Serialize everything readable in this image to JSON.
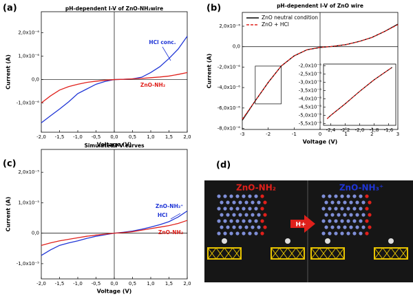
{
  "chart_data": [
    {
      "type": "line",
      "panel": "(a)",
      "title": "pH-dependent I-V of ZnO-NH₂wire",
      "x_label": "Voltage (V)",
      "y_label": "Current (A)",
      "x": [
        -2,
        -1.75,
        -1.5,
        -1.25,
        -1,
        -0.75,
        -0.5,
        -0.25,
        0,
        0.25,
        0.5,
        0.75,
        1,
        1.25,
        1.5,
        1.75,
        2
      ],
      "series": [
        {
          "name": "HCl conc.",
          "color": "#1f35d6",
          "values": [
            -1.85e-06,
            -1.55e-06,
            -1.26e-06,
            -9.5e-07,
            -6e-07,
            -4e-07,
            -2e-07,
            -8e-08,
            0,
            1e-08,
            3e-08,
            1e-07,
            3e-07,
            5.5e-07,
            9e-07,
            1.3e-06,
            1.85e-06
          ]
        },
        {
          "name": "ZnO-NH₂",
          "color": "#e0201b",
          "values": [
            -1e-06,
            -7e-07,
            -4.5e-07,
            -3e-07,
            -2e-07,
            -1.2e-07,
            -7e-08,
            -3e-08,
            0,
            1e-08,
            3e-08,
            5e-08,
            8e-08,
            1.1e-07,
            1.5e-07,
            2.2e-07,
            3e-07
          ]
        }
      ],
      "xlim": [
        -2,
        2
      ],
      "ylim": [
        -2.25e-06,
        2.9e-06
      ],
      "crosshair": true,
      "xticks": [
        {
          "value": -2,
          "label": "-2,0"
        },
        {
          "value": -1.5,
          "label": "-1,5"
        },
        {
          "value": -1,
          "label": "-1,0"
        },
        {
          "value": -0.5,
          "label": "-0,5"
        },
        {
          "value": 0,
          "label": "0,0"
        },
        {
          "value": 0.5,
          "label": "0,5"
        },
        {
          "value": 1,
          "label": "1,0"
        },
        {
          "value": 1.5,
          "label": "1,5"
        },
        {
          "value": 2,
          "label": "2,0"
        }
      ],
      "yticks": [
        {
          "value": -1e-06,
          "label": "-1,0x10⁻⁶"
        },
        {
          "value": 0,
          "label": "0,0"
        },
        {
          "value": 1e-06,
          "label": "1,0x10⁻⁶"
        },
        {
          "value": 2e-06,
          "label": "2,0x10⁻⁶"
        }
      ]
    },
    {
      "type": "line",
      "panel": "(b)",
      "title": "pH-dependent I-V of ZnO wire",
      "x_label": "Voltage (V)",
      "y_label": "Current (A)",
      "legend": "upper left",
      "x": [
        -3,
        -2.5,
        -2,
        -1.5,
        -1,
        -0.5,
        0,
        0.5,
        1,
        1.5,
        2,
        2.5,
        3
      ],
      "series": [
        {
          "name": "ZnO neutral condition",
          "color": "#000000",
          "values": [
            -7.2e-06,
            -5.3e-06,
            -3.5e-06,
            -1.9e-06,
            -9e-07,
            -3e-07,
            -8e-08,
            3e-08,
            2e-07,
            5e-07,
            9e-07,
            1.5e-06,
            2.2e-06
          ]
        },
        {
          "name": "ZnO + HCl",
          "color": "#e0201b",
          "dash": true,
          "values": [
            -7.1e-06,
            -5.3e-06,
            -3.5e-06,
            -1.9e-06,
            -9e-07,
            -3e-07,
            -7e-08,
            3e-08,
            2e-07,
            5e-07,
            9e-07,
            1.5e-06,
            2.15e-06
          ]
        }
      ],
      "xlim": [
        -3,
        3
      ],
      "ylim": [
        -8.1e-06,
        3.35e-06
      ],
      "crosshair": true,
      "xticks": [
        -3,
        -2,
        -1,
        0,
        1,
        2,
        3
      ],
      "yticks": [
        {
          "value": -8e-06,
          "label": "-8,0x10⁻⁶"
        },
        {
          "value": -6e-06,
          "label": "-6,0x10⁻⁶"
        },
        {
          "value": -4e-06,
          "label": "-4,0x10⁻⁶"
        },
        {
          "value": -2e-06,
          "label": "-2,0x10⁻⁶"
        },
        {
          "value": 0,
          "label": "0,0"
        },
        {
          "value": 2e-06,
          "label": "2,0x10⁻⁶"
        }
      ],
      "inset": {
        "type": "line",
        "x": [
          -2.45,
          -2.4,
          -2.2,
          -2.0,
          -1.8,
          -1.6,
          -1.55
        ],
        "series": [
          {
            "color": "#000000",
            "values": [
              -5.2e-06,
              -5e-06,
              -4.3e-06,
              -3.55e-06,
              -2.85e-06,
              -2.25e-06,
              -2.1e-06
            ]
          },
          {
            "color": "#e0201b",
            "dash": true,
            "values": [
              -5.2e-06,
              -5e-06,
              -4.3e-06,
              -3.55e-06,
              -2.85e-06,
              -2.25e-06,
              -2.1e-06
            ]
          }
        ],
        "xlim": [
          -2.5,
          -1.5
        ],
        "ylim": [
          -5.6e-06,
          -1.9e-06
        ],
        "xticks": [
          {
            "value": -2.4,
            "label": "-2,4"
          },
          {
            "value": -2.2,
            "label": "-2,2"
          },
          {
            "value": -2.0,
            "label": "-2,0"
          },
          {
            "value": -1.8,
            "label": "-1,8"
          },
          {
            "value": -1.6,
            "label": "-1,6"
          }
        ],
        "yticks": [
          {
            "value": -2e-06,
            "label": "-2,0x10⁻⁶"
          },
          {
            "value": -2.5e-06,
            "label": "-2,5x10⁻⁶"
          },
          {
            "value": -3e-06,
            "label": "-3,0x10⁻⁶"
          },
          {
            "value": -3.5e-06,
            "label": "-3,5x10⁻⁶"
          },
          {
            "value": -4e-06,
            "label": "-4,0x10⁻⁶"
          },
          {
            "value": -4.5e-06,
            "label": "-4,5x10⁻⁶"
          },
          {
            "value": -5e-06,
            "label": "-5,0x10⁻⁶"
          },
          {
            "value": -5.5e-06,
            "label": "-5,5x10⁻⁶"
          }
        ]
      }
    },
    {
      "type": "line",
      "panel": "(c)",
      "title": "Simulated I-V curves",
      "x_label": "Voltage (V)",
      "y_label": "Current (A)",
      "x": [
        -2,
        -1.75,
        -1.5,
        -1.25,
        -1,
        -0.75,
        -0.5,
        -0.25,
        0,
        0.25,
        0.5,
        0.75,
        1,
        1.25,
        1.5,
        1.75,
        2
      ],
      "series": [
        {
          "name": "ZnO-NH₃⁺",
          "color": "#1f35d6",
          "values": [
            -7.3e-06,
            -5.5e-06,
            -4e-06,
            -3.2e-06,
            -2.5e-06,
            -1.7e-06,
            -1e-06,
            -5e-07,
            0,
            3e-07,
            7e-07,
            1.3e-06,
            2e-06,
            2.8e-06,
            3.8e-06,
            5.3e-06,
            7.3e-06
          ]
        },
        {
          "name": "ZnO-NH₂",
          "color": "#e0201b",
          "values": [
            -4e-06,
            -3.2e-06,
            -2.5e-06,
            -2e-06,
            -1.5e-06,
            -1e-06,
            -6e-07,
            -3e-07,
            0,
            2e-07,
            5e-07,
            1e-06,
            1.5e-06,
            2e-06,
            2.5e-06,
            3.2e-06,
            4.2e-06
          ]
        }
      ],
      "annotation": "HCl",
      "xlim": [
        -2,
        2
      ],
      "ylim": [
        -1.5e-05,
        2.75e-05
      ],
      "crosshair": true,
      "xticks": [
        {
          "value": -2,
          "label": "-2,0"
        },
        {
          "value": -1.5,
          "label": "-1,5"
        },
        {
          "value": -1,
          "label": "-1,0"
        },
        {
          "value": -0.5,
          "label": "-0,5"
        },
        {
          "value": 0,
          "label": "0,0"
        },
        {
          "value": 0.5,
          "label": "0,5"
        },
        {
          "value": 1,
          "label": "1,0"
        },
        {
          "value": 1.5,
          "label": "1,5"
        },
        {
          "value": 2,
          "label": "2,0"
        }
      ],
      "yticks": [
        {
          "value": -1e-05,
          "label": "-1,0x10⁻⁵"
        },
        {
          "value": 0,
          "label": "0,0"
        },
        {
          "value": 1e-05,
          "label": "1,0x10⁻⁵"
        },
        {
          "value": 2e-05,
          "label": "2,0x10⁻⁵"
        }
      ]
    }
  ],
  "diagram": {
    "panel": "(d)",
    "left_label": "ZnO-NH₂",
    "right_label": "ZnO-NH₃⁺",
    "arrow_label": "H+"
  }
}
